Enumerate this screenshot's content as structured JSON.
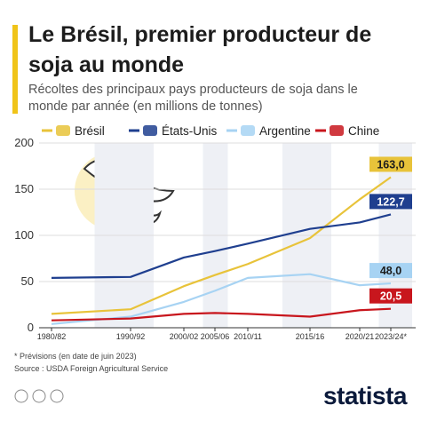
{
  "chart_data": {
    "type": "line",
    "title": "Le Brésil, premier producteur de soja au monde",
    "subtitle": "Récoltes des principaux pays producteurs de soja dans le monde par année (en millions de tonnes)",
    "categories": [
      "1980/82",
      "1990/92",
      "2000/02",
      "2005/06",
      "2010/11",
      "2015/16",
      "2020/21",
      "2023/24*"
    ],
    "series": [
      {
        "name": "Brésil",
        "color": "#e8c33a",
        "values": [
          15,
          20,
          45,
          57,
          69,
          97,
          139,
          163.0
        ],
        "value_labels": [
          null,
          null,
          null,
          null,
          null,
          null,
          null,
          "163,0"
        ]
      },
      {
        "name": "États-Unis",
        "color": "#1f3f8f",
        "values": [
          54,
          55,
          76,
          83,
          91,
          107,
          114,
          122.7
        ],
        "value_labels": [
          null,
          null,
          null,
          null,
          null,
          null,
          null,
          "122,7"
        ]
      },
      {
        "name": "Argentine",
        "color": "#a7d3f3",
        "values": [
          4,
          12,
          28,
          40,
          54,
          58,
          46,
          48.0
        ],
        "value_labels": [
          null,
          null,
          null,
          null,
          null,
          null,
          null,
          "48,0"
        ]
      },
      {
        "name": "Chine",
        "color": "#c8161d",
        "values": [
          8,
          10,
          15,
          16,
          15,
          12,
          19,
          20.5
        ],
        "value_labels": [
          null,
          null,
          null,
          null,
          null,
          null,
          null,
          "20,5"
        ]
      }
    ],
    "ylim": [
      0,
      200
    ],
    "yticks": [
      0,
      50,
      100,
      150,
      200
    ],
    "grid": true,
    "note": "* Prévisions (en date de juin 2023)",
    "source": "Source : USDA Foreign Agricultural Service",
    "brand": "statista"
  }
}
